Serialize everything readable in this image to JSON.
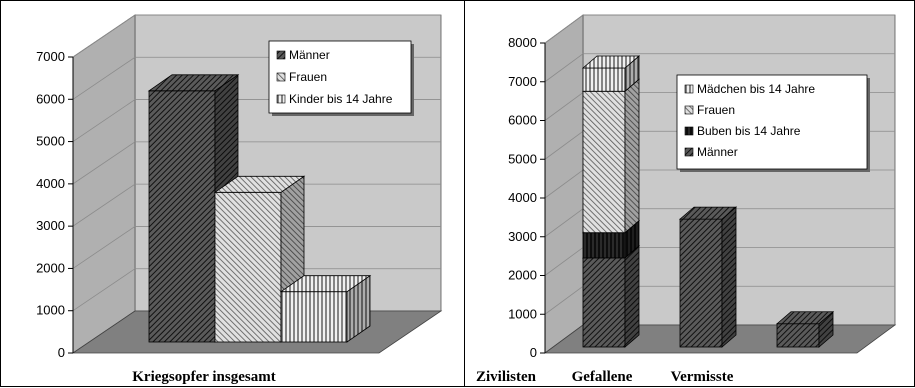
{
  "chart_data": [
    {
      "type": "bar",
      "stacked": false,
      "categories": [
        "Kriegsopfer insgesamt"
      ],
      "series": [
        {
          "name": "Männer",
          "values": [
            6200
          ]
        },
        {
          "name": "Frauen",
          "values": [
            3800
          ]
        },
        {
          "name": "Kinder bis 14 Jahre",
          "values": [
            1450
          ]
        }
      ],
      "yticks": [
        "0",
        "1000",
        "2000",
        "3000",
        "4000",
        "5000",
        "6000",
        "7000"
      ],
      "ylim": [
        0,
        7000
      ],
      "grid": true,
      "legend_position": "top-right",
      "three_d": true
    },
    {
      "type": "bar",
      "stacked": true,
      "categories": [
        "Zivilisten",
        "Gefallene",
        "Vermisste"
      ],
      "series": [
        {
          "name": "Männer",
          "values": [
            2300,
            3300,
            600
          ]
        },
        {
          "name": "Buben bis 14 Jahre",
          "values": [
            650,
            0,
            0
          ]
        },
        {
          "name": "Frauen",
          "values": [
            3650,
            0,
            0
          ]
        },
        {
          "name": "Mädchen bis 14 Jahre",
          "values": [
            600,
            0,
            0
          ]
        }
      ],
      "legend_order": [
        "Mädchen bis 14 Jahre",
        "Frauen",
        "Buben bis 14 Jahre",
        "Männer"
      ],
      "yticks": [
        "0",
        "1000",
        "2000",
        "3000",
        "4000",
        "5000",
        "6000",
        "7000",
        "8000"
      ],
      "ylim": [
        0,
        8000
      ],
      "grid": true,
      "legend_position": "top-right",
      "three_d": true
    }
  ],
  "colors": {
    "wall": "#c9c9c9",
    "floor": "#808080",
    "grid": "#8c8c8c",
    "bar_dark": "#333333",
    "bar_mid": "#8a8a8a",
    "bar_light": "#d6d6d6"
  }
}
